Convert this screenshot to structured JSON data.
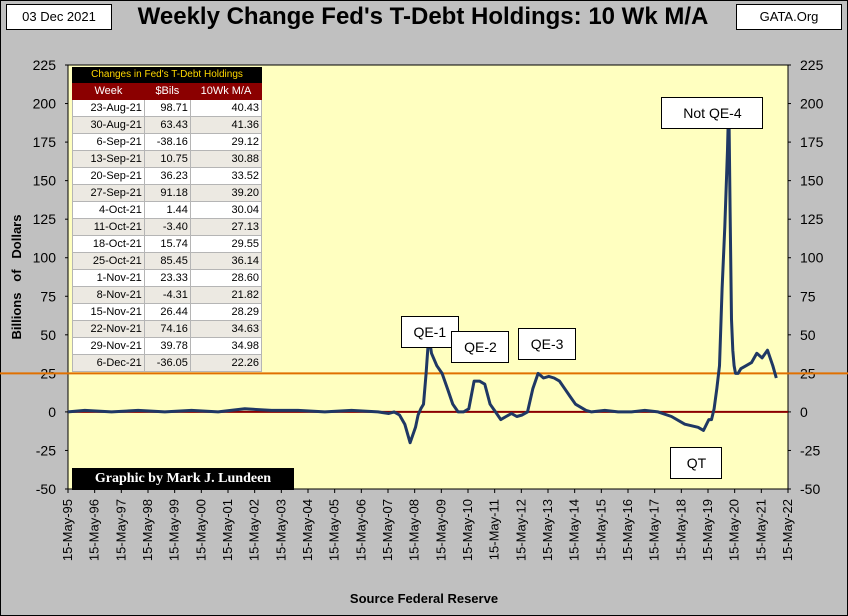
{
  "header": {
    "date": "03 Dec 2021",
    "title": "Weekly Change Fed's T-Debt Holdings: 10 Wk M/A",
    "site": "GATA.Org"
  },
  "footer": {
    "source": "Source Federal Reserve",
    "credit": "Graphic by Mark J. Lundeen"
  },
  "colors": {
    "plot_bg": "#ffffc0",
    "line": "#1f3864",
    "zero_line": "#8b0000",
    "ref_line": "#e07000"
  },
  "table": {
    "caption": "Changes in Fed's T-Debt Holdings",
    "headers": [
      "Week",
      "$Bils",
      "10Wk M/A"
    ],
    "rows": [
      [
        "23-Aug-21",
        "98.71",
        "40.43"
      ],
      [
        "30-Aug-21",
        "63.43",
        "41.36"
      ],
      [
        "6-Sep-21",
        "-38.16",
        "29.12"
      ],
      [
        "13-Sep-21",
        "10.75",
        "30.88"
      ],
      [
        "20-Sep-21",
        "36.23",
        "33.52"
      ],
      [
        "27-Sep-21",
        "91.18",
        "39.20"
      ],
      [
        "4-Oct-21",
        "1.44",
        "30.04"
      ],
      [
        "11-Oct-21",
        "-3.40",
        "27.13"
      ],
      [
        "18-Oct-21",
        "15.74",
        "29.55"
      ],
      [
        "25-Oct-21",
        "85.45",
        "36.14"
      ],
      [
        "1-Nov-21",
        "23.33",
        "28.60"
      ],
      [
        "8-Nov-21",
        "-4.31",
        "21.82"
      ],
      [
        "15-Nov-21",
        "26.44",
        "28.29"
      ],
      [
        "22-Nov-21",
        "74.16",
        "34.63"
      ],
      [
        "29-Nov-21",
        "39.78",
        "34.98"
      ],
      [
        "6-Dec-21",
        "-36.05",
        "22.26"
      ]
    ]
  },
  "chart_data": {
    "type": "line",
    "title": "Weekly Change Fed's T-Debt Holdings: 10 Wk M/A",
    "ylabel": "Billions   of   Dollars",
    "xlabel": "Source Federal Reserve",
    "ylim": [
      -50,
      225
    ],
    "yticks": [
      225,
      200,
      175,
      150,
      125,
      100,
      75,
      50,
      25,
      0,
      -25,
      -50
    ],
    "xlim": [
      1995.37,
      2022.37
    ],
    "xticks": [
      "15-May-95",
      "15-May-96",
      "15-May-97",
      "15-May-98",
      "15-May-99",
      "15-May-00",
      "15-May-01",
      "15-May-02",
      "15-May-03",
      "15-May-04",
      "15-May-05",
      "15-May-06",
      "15-May-07",
      "15-May-08",
      "15-May-09",
      "15-May-10",
      "15-May-11",
      "15-May-12",
      "15-May-13",
      "15-May-14",
      "15-May-15",
      "15-May-16",
      "15-May-17",
      "15-May-18",
      "15-May-19",
      "15-May-20",
      "15-May-21",
      "15-May-22"
    ],
    "reference_lines": [
      0,
      25
    ],
    "annotations": [
      {
        "text": "QE-1",
        "x": 2008.9,
        "y": 52
      },
      {
        "text": "QE-2",
        "x": 2010.8,
        "y": 42
      },
      {
        "text": "QE-3",
        "x": 2013.3,
        "y": 44
      },
      {
        "text": "Not QE-4",
        "x": 2019.5,
        "y": 194
      },
      {
        "text": "QT",
        "x": 2018.9,
        "y": -33
      }
    ],
    "series": [
      {
        "x": [
          1995.37,
          1996.0,
          1997.0,
          1998.0,
          1999.0,
          2000.0,
          2001.0,
          2002.0,
          2003.0,
          2004.0,
          2005.0,
          2006.0,
          2007.0,
          2007.4,
          2007.6,
          2007.8,
          2008.0,
          2008.2,
          2008.4,
          2008.5,
          2008.6,
          2008.7,
          2008.8,
          2008.9,
          2009.0,
          2009.2,
          2009.4,
          2009.6,
          2009.8,
          2010.0,
          2010.2,
          2010.4,
          2010.6,
          2010.8,
          2011.0,
          2011.2,
          2011.4,
          2011.6,
          2011.8,
          2012.0,
          2012.2,
          2012.4,
          2012.6,
          2012.8,
          2013.0,
          2013.2,
          2013.4,
          2013.6,
          2013.8,
          2014.0,
          2014.2,
          2014.4,
          2014.6,
          2014.8,
          2015.0,
          2015.5,
          2016.0,
          2016.5,
          2017.0,
          2017.5,
          2018.0,
          2018.5,
          2019.0,
          2019.2,
          2019.4,
          2019.5,
          2019.6,
          2019.7,
          2019.8,
          2019.9,
          2020.0,
          2020.1,
          2020.15,
          2020.2,
          2020.25,
          2020.3,
          2020.35,
          2020.4,
          2020.5,
          2020.6,
          2020.8,
          2021.0,
          2021.2,
          2021.4,
          2021.6,
          2021.8,
          2021.93
        ],
        "y": [
          0,
          1,
          0,
          1,
          0,
          1,
          0,
          2,
          1,
          1,
          0,
          1,
          0,
          -1,
          0,
          -2,
          -8,
          -20,
          -10,
          -2,
          2,
          5,
          25,
          50,
          38,
          30,
          25,
          15,
          5,
          0,
          0,
          2,
          20,
          20,
          18,
          5,
          0,
          -5,
          -3,
          -1,
          -3,
          -2,
          0,
          15,
          25,
          22,
          23,
          22,
          20,
          15,
          10,
          5,
          3,
          1,
          0,
          1,
          0,
          0,
          1,
          0,
          -3,
          -8,
          -10,
          -12,
          -5,
          -5,
          2,
          15,
          30,
          80,
          120,
          170,
          203,
          130,
          60,
          40,
          30,
          25,
          25,
          28,
          30,
          32,
          38,
          35,
          40,
          30,
          22
        ]
      }
    ]
  }
}
